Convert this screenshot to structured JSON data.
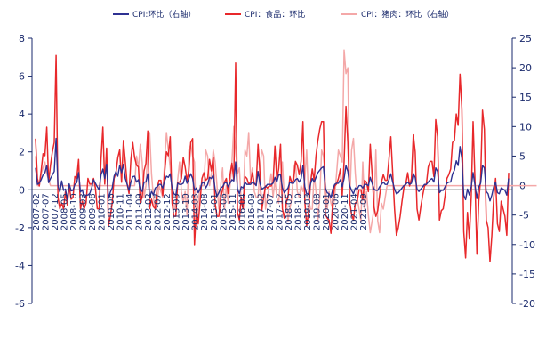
{
  "chart_data": {
    "type": "line",
    "title": "",
    "xlabel": "",
    "ylabel": "",
    "ylim_left": [
      -6,
      8
    ],
    "ylim_right": [
      -20,
      25
    ],
    "yticks_left": [
      "-6",
      "-4",
      "-2",
      "0",
      "2",
      "4",
      "6",
      "8"
    ],
    "yticks_right": [
      "-20",
      "-15",
      "-10",
      "-5",
      "0",
      "5",
      "10",
      "15",
      "20",
      "25"
    ],
    "legend_position": "top",
    "x_start": "2007-02",
    "x_end": "2021-09",
    "xtick_labels": [
      "2007-02",
      "2007-07",
      "2007-12",
      "2008-05",
      "2008-10",
      "2009-03",
      "2009-08",
      "2010-01",
      "2010-06",
      "2010-11",
      "2011-04",
      "2011-09",
      "2012-02",
      "2012-07",
      "2012-12",
      "2013-05",
      "2013-10",
      "2014-03",
      "2014-08",
      "2015-01",
      "2015-06",
      "2015-11",
      "2016-04",
      "2016-09",
      "2017-02",
      "2017-07",
      "2017-12",
      "2018-05",
      "2018-10",
      "2019-03",
      "2019-08",
      "2020-01",
      "2020-06",
      "2020-11",
      "2021-04",
      "2021-09"
    ],
    "series": [
      {
        "name": "CPI:环比（右轴）",
        "color": "#2e3192",
        "axis": "right",
        "values": [
          3.0,
          0.2,
          0.4,
          1.0,
          1.8,
          2.2,
          3.4,
          0.5,
          1.2,
          1.8,
          2.4,
          8.0,
          0.0,
          -1.1,
          0.8,
          -0.8,
          -0.6,
          -2.4,
          0.3,
          -0.9,
          -0.8,
          0.2,
          0.5,
          2.2,
          -1.1,
          -0.7,
          -2.1,
          -1.6,
          -1.6,
          -1.3,
          -0.4,
          1.0,
          0.4,
          -0.2,
          -0.7,
          1.8,
          2.8,
          1.2,
          3.6,
          -2.2,
          -1.1,
          -0.4,
          1.6,
          2.4,
          1.6,
          3.4,
          2.2,
          3.6,
          1.2,
          0.2,
          -0.8,
          0.6,
          1.5,
          1.6,
          0.6,
          1.0,
          -0.8,
          -1.0,
          0.6,
          0.6,
          2.0,
          -2.0,
          -1.0,
          -1.6,
          -0.4,
          -0.2,
          0.2,
          0.2,
          -0.4,
          0.8,
          1.6,
          1.4,
          2.0,
          -0.4,
          -1.4,
          -1.6,
          0.4,
          0.2,
          0.2,
          0.4,
          1.6,
          0.4,
          1.2,
          2.0,
          1.2,
          -0.8,
          -0.4,
          -1.2,
          -0.6,
          0.4,
          0.6,
          -0.4,
          0.2,
          1.4,
          1.2,
          1.8,
          -0.6,
          -1.8,
          -1.2,
          -0.4,
          -0.2,
          0.4,
          0.6,
          -0.2,
          0.4,
          1.0,
          0.8,
          4.0,
          -0.6,
          -1.4,
          -0.2,
          -0.4,
          0.6,
          0.2,
          0.2,
          0.2,
          0.6,
          0.4,
          0.0,
          2.4,
          0.4,
          -0.6,
          -0.4,
          -0.2,
          0.2,
          0.2,
          0.2,
          0.4,
          1.4,
          0.6,
          1.8,
          1.8,
          -0.4,
          -1.2,
          -0.8,
          -0.4,
          0.6,
          0.4,
          0.4,
          1.0,
          1.2,
          0.6,
          1.2,
          3.4,
          -0.2,
          -1.4,
          -1.4,
          0.2,
          1.2,
          0.6,
          1.4,
          2.2,
          2.6,
          3.0,
          3.2,
          -0.4,
          -1.2,
          -1.4,
          -2.0,
          -0.6,
          0.2,
          0.4,
          0.4,
          1.0,
          -0.2,
          1.2,
          3.4,
          2.4,
          0.0,
          -0.8,
          -1.4,
          -0.4,
          -0.6,
          0.0,
          0.0,
          -0.4,
          0.2,
          0.2,
          0.0,
          1.4,
          0.4,
          -0.6,
          -0.8,
          -0.8,
          -0.2,
          0.2,
          0.6,
          0.2,
          0.2,
          1.0,
          2.0,
          0.6,
          -0.6,
          -1.4,
          -1.2,
          -0.8,
          -0.4,
          0.0,
          0.2,
          0.6,
          0.2,
          0.4,
          2.0,
          1.4,
          -0.6,
          -1.0,
          -0.6,
          -0.2,
          0.2,
          0.2,
          0.6,
          1.0,
          1.2,
          0.6,
          3.0,
          2.4,
          -1.2,
          -0.8,
          -0.8,
          -0.2,
          0.4,
          0.6,
          0.6,
          2.0,
          2.6,
          4.2,
          3.4,
          6.6,
          4.6,
          -1.6,
          -2.4,
          -0.6,
          -1.6,
          -0.2,
          2.2,
          0.0,
          -2.2,
          -0.2,
          0.4,
          3.4,
          3.0,
          -1.0,
          -1.4,
          -2.6,
          -1.6,
          -0.2,
          0.6,
          -1.2,
          -1.4,
          -0.4,
          -0.6,
          -0.8,
          -1.6,
          1.2
        ]
      },
      {
        "name": "CPI：食品：环比",
        "color": "#e8282b",
        "axis": "left",
        "values": [
          2.7,
          0.6,
          0.2,
          1.0,
          1.9,
          1.8,
          3.3,
          0.4,
          1.3,
          2.0,
          2.5,
          7.1,
          -0.4,
          -1.0,
          -0.7,
          -1.0,
          -0.1,
          -0.8,
          0.2,
          -0.5,
          -0.4,
          0.7,
          0.6,
          1.6,
          -1.0,
          -0.6,
          -1.0,
          -0.7,
          0.6,
          0.3,
          0.3,
          0.6,
          0.1,
          -1.0,
          -1.0,
          1.6,
          3.3,
          0.3,
          2.2,
          -1.9,
          -1.4,
          -0.7,
          0.6,
          0.9,
          1.7,
          2.1,
          0.4,
          2.6,
          1.5,
          0.3,
          -0.2,
          1.6,
          2.5,
          1.7,
          1.3,
          1.2,
          -0.7,
          -0.4,
          1.0,
          1.4,
          3.1,
          -1.0,
          -0.5,
          -0.9,
          -1.0,
          0.1,
          0.5,
          0.5,
          -0.3,
          0.9,
          2.0,
          1.8,
          2.8,
          -0.7,
          -1.4,
          -1.4,
          0.4,
          0.4,
          0.6,
          1.7,
          1.2,
          0.5,
          1.0,
          2.5,
          2.7,
          -2.9,
          -1.0,
          -1.8,
          -0.6,
          0.6,
          0.9,
          0.5,
          0.6,
          1.6,
          1.0,
          1.7,
          -0.7,
          -1.4,
          -1.4,
          -0.4,
          0.0,
          0.4,
          0.6,
          -0.2,
          0.8,
          1.4,
          0.5,
          6.7,
          -1.2,
          -1.6,
          -0.4,
          -1.0,
          0.7,
          0.6,
          0.3,
          0.4,
          0.9,
          0.3,
          0.3,
          2.4,
          0.9,
          -1.1,
          -0.4,
          0.2,
          0.1,
          0.2,
          0.2,
          0.4,
          2.3,
          0.5,
          1.1,
          2.4,
          -1.0,
          -1.5,
          -0.7,
          -0.4,
          0.7,
          0.4,
          0.5,
          1.5,
          1.3,
          0.8,
          1.5,
          3.6,
          -0.6,
          -1.9,
          -1.2,
          0.3,
          1.1,
          0.5,
          1.8,
          2.6,
          3.2,
          3.6,
          3.6,
          -1.3,
          -1.5,
          -1.6,
          -2.3,
          -0.5,
          0.2,
          0.3,
          0.6,
          1.1,
          -0.3,
          1.5,
          4.4,
          2.5,
          -0.6,
          -1.3,
          -1.6,
          -0.7,
          -0.6,
          0.0,
          0.0,
          -0.5,
          0.5,
          0.4,
          -0.1,
          2.4,
          0.8,
          -0.9,
          -1.4,
          -1.1,
          -0.3,
          0.4,
          0.8,
          0.5,
          0.5,
          1.6,
          2.8,
          0.9,
          -1.0,
          -2.4,
          -2.0,
          -1.4,
          -0.6,
          0.1,
          0.3,
          0.9,
          0.2,
          0.6,
          2.9,
          2.0,
          -1.0,
          -1.6,
          -0.9,
          -0.3,
          0.2,
          0.3,
          1.2,
          1.5,
          1.5,
          0.7,
          3.7,
          2.8,
          -1.6,
          -1.1,
          -1.0,
          -0.3,
          0.6,
          0.8,
          1.1,
          2.5,
          2.6,
          4.0,
          3.4,
          6.1,
          4.3,
          -2.2,
          -3.6,
          -1.2,
          -2.6,
          -0.4,
          3.6,
          0.4,
          -3.4,
          -0.6,
          0.6,
          4.2,
          3.2,
          -1.6,
          -2.0,
          -3.8,
          -2.4,
          -0.4,
          0.6,
          -1.8,
          -2.2,
          -0.6,
          -1.0,
          -1.4,
          -2.4,
          0.9
        ]
      },
      {
        "name": "CPI：猪肉：环比（右轴）",
        "color": "#f4a8a8",
        "axis": "right",
        "values": [
          5.0,
          0.0,
          0.0,
          2.0,
          3.0,
          4.0,
          2.0,
          1.0,
          0.0,
          0.0,
          0.0,
          0.0,
          0.0,
          0.0,
          0.0,
          0.0,
          0.0,
          0.0,
          0.0,
          0.0,
          0.0,
          0.0,
          0.0,
          0.0,
          0.0,
          0.0,
          0.0,
          0.0,
          0.0,
          0.0,
          0.0,
          0.0,
          0.0,
          0.0,
          0.0,
          0.0,
          0.0,
          0.0,
          0.0,
          0.0,
          0.0,
          0.0,
          0.0,
          0.0,
          0.0,
          0.0,
          0.0,
          0.0,
          0.0,
          0.0,
          0.0,
          0.0,
          0.0,
          0.0,
          5.0,
          3.0,
          7.0,
          4.0,
          -2.0,
          0.0,
          6.0,
          9.0,
          2.0,
          -2.0,
          -4.0,
          -3.0,
          0.0,
          -1.0,
          -2.0,
          4.0,
          9.0,
          6.0,
          3.0,
          -1.0,
          -4.0,
          -3.0,
          1.0,
          4.0,
          -1.0,
          -3.0,
          -1.0,
          -5.0,
          6.0,
          7.0,
          5.0,
          4.0,
          -7.0,
          -3.0,
          0.0,
          0.0,
          0.0,
          6.0,
          5.0,
          0.0,
          2.0,
          6.0,
          4.0,
          0.0,
          -4.0,
          0.0,
          3.0,
          -4.0,
          0.0,
          -3.0,
          0.0,
          4.0,
          10.0,
          6.0,
          2.0,
          3.0,
          -3.0,
          -4.0,
          6.0,
          5.0,
          9.0,
          1.0,
          3.0,
          -1.0,
          -2.0,
          -2.0,
          3.0,
          6.0,
          5.0,
          -4.0,
          -2.0,
          0.0,
          2.0,
          -2.0,
          1.0,
          -2.0,
          -3.0,
          1.0,
          4.0,
          -2.0,
          -2.0,
          -6.0,
          -4.0,
          -2.0,
          3.0,
          4.0,
          -1.0,
          -2.0,
          0.0,
          -1.0,
          1.0,
          6.0,
          -2.0,
          -4.0,
          -4.0,
          2.0,
          -1.0,
          -6.0,
          -2.0,
          6.0,
          5.0,
          1.0,
          -4.0,
          -1.0,
          -3.0,
          -4.0,
          -2.0,
          2.0,
          6.0,
          5.0,
          4.0,
          23.0,
          19.0,
          20.0,
          -3.0,
          6.0,
          8.0,
          2.0,
          -2.0,
          -4.0,
          -6.0,
          4.0,
          -4.0,
          -1.0,
          -5.0,
          -8.0,
          -6.0,
          -4.0,
          6.0,
          -6.0,
          -8.0,
          -3.0,
          -4.0,
          -2.0,
          0.0,
          0.0,
          0.0,
          0.0,
          0.0,
          0.0,
          0.0,
          0.0,
          0.0,
          0.0,
          0.0,
          0.0,
          0.0,
          0.0,
          0.0,
          0.0,
          0.0,
          0.0,
          0.0,
          0.0,
          0.0,
          0.0,
          0.0,
          0.0,
          0.0,
          0.0,
          0.0,
          0.0,
          0.0,
          0.0,
          0.0,
          0.0,
          0.0,
          0.0,
          0.0,
          0.0,
          0.0,
          0.0,
          0.0,
          0.0,
          0.0,
          0.0,
          0.0,
          0.0,
          0.0,
          0.0,
          0.0,
          0.0,
          0.0,
          0.0,
          0.0,
          0.0,
          0.0,
          0.0,
          0.0,
          0.0,
          0.0,
          0.0,
          0.0,
          0.0,
          0.0,
          0.0,
          0.0,
          0.0,
          0.0,
          0.0,
          0.0,
          0.0,
          0.0,
          0.0,
          0.0,
          0.0,
          0.0,
          0.0,
          0.0,
          0.0,
          0.0,
          0.0,
          0.0,
          0.0,
          0.0
        ]
      }
    ]
  }
}
